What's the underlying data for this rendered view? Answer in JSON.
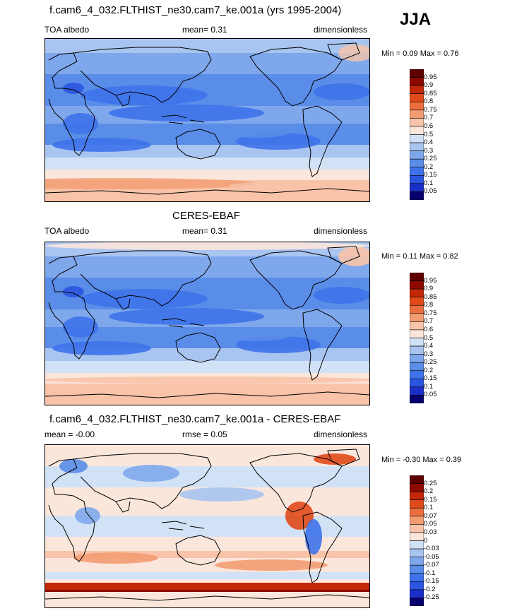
{
  "season": "JJA",
  "panels": [
    {
      "title": "f.cam6_4_032.FLTHIST_ne30.cam7_ke.001a (yrs 1995-2004)",
      "left_label": "TOA albedo",
      "stat_label": "mean=  0.31",
      "unit_label": "dimensionless",
      "minmax": "Min =  0.09 Max =  0.76",
      "colorbar_labels": [
        "0.95",
        "0.9",
        "0.85",
        "0.8",
        "0.75",
        "0.7",
        "0.6",
        "0.5",
        "0.4",
        "0.3",
        "0.25",
        "0.2",
        "0.15",
        "0.1",
        "0.05"
      ]
    },
    {
      "title": "CERES-EBAF",
      "left_label": "TOA albedo",
      "stat_label": "mean=  0.31",
      "unit_label": "dimensionless",
      "minmax": "Min =  0.11 Max =  0.82",
      "colorbar_labels": [
        "0.95",
        "0.9",
        "0.85",
        "0.8",
        "0.75",
        "0.7",
        "0.6",
        "0.5",
        "0.4",
        "0.3",
        "0.25",
        "0.2",
        "0.15",
        "0.1",
        "0.05"
      ]
    },
    {
      "title": "f.cam6_4_032.FLTHIST_ne30.cam7_ke.001a - CERES-EBAF",
      "left_label": "mean =  -0.00",
      "stat_label": "rmse =  0.05",
      "unit_label": "dimensionless",
      "minmax": "Min =  -0.30 Max =  0.39",
      "colorbar_labels": [
        "0.25",
        "0.2",
        "0.15",
        "0.1",
        "0.07",
        "0.05",
        "0.03",
        "0",
        "-0.03",
        "-0.05",
        "-0.07",
        "-0.1",
        "-0.15",
        "-0.2",
        "-0.25"
      ]
    }
  ],
  "chart_data": [
    {
      "type": "heatmap",
      "title": "f.cam6_4_032.FLTHIST_ne30.cam7_ke.001a (yrs 1995-2004)",
      "variable": "TOA albedo",
      "units": "dimensionless",
      "mean": 0.31,
      "min": 0.09,
      "max": 0.76,
      "colorbar_levels": [
        0.05,
        0.1,
        0.15,
        0.2,
        0.25,
        0.3,
        0.4,
        0.5,
        0.6,
        0.7,
        0.75,
        0.8,
        0.85,
        0.9,
        0.95
      ],
      "colors": [
        "#08006e",
        "#1a2fc8",
        "#2b55e0",
        "#3e72ea",
        "#5a8de8",
        "#7fa8ec",
        "#a8c4f0",
        "#d2e2f6",
        "#fbe6dc",
        "#f8c3a8",
        "#f39c72",
        "#ec6e3e",
        "#e04a1a",
        "#c22808",
        "#8e0a00",
        "#5e0000"
      ],
      "fields": "model JJA climatology of TOA albedo on a global lat-lon map"
    },
    {
      "type": "heatmap",
      "title": "CERES-EBAF",
      "variable": "TOA albedo",
      "units": "dimensionless",
      "mean": 0.31,
      "min": 0.11,
      "max": 0.82,
      "colorbar_levels": [
        0.05,
        0.1,
        0.15,
        0.2,
        0.25,
        0.3,
        0.4,
        0.5,
        0.6,
        0.7,
        0.75,
        0.8,
        0.85,
        0.9,
        0.95
      ]
    },
    {
      "type": "heatmap",
      "title": "f.cam6_4_032.FLTHIST_ne30.cam7_ke.001a - CERES-EBAF",
      "units": "dimensionless",
      "mean": -0.0,
      "rmse": 0.05,
      "min": -0.3,
      "max": 0.39,
      "colorbar_levels": [
        -0.25,
        -0.2,
        -0.15,
        -0.1,
        -0.07,
        -0.05,
        -0.03,
        0,
        0.03,
        0.05,
        0.07,
        0.1,
        0.15,
        0.2,
        0.25
      ],
      "colors": [
        "#08006e",
        "#1a2fc8",
        "#2b55e0",
        "#3e72ea",
        "#5a8de8",
        "#7fa8ec",
        "#a8c4f0",
        "#d2e2f6",
        "#fbe6dc",
        "#f8c3a8",
        "#f39c72",
        "#ec6e3e",
        "#e04a1a",
        "#c22808",
        "#8e0a00",
        "#5e0000"
      ]
    }
  ]
}
